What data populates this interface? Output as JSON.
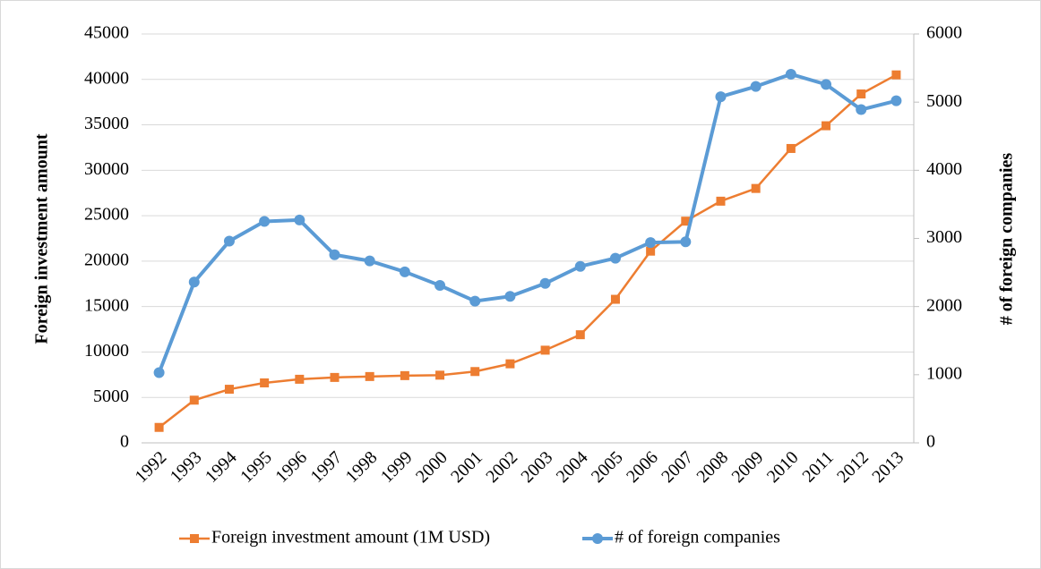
{
  "chart_data": {
    "type": "line",
    "categories": [
      "1992",
      "1993",
      "1994",
      "1995",
      "1996",
      "1997",
      "1998",
      "1999",
      "2000",
      "2001",
      "2002",
      "2003",
      "2004",
      "2005",
      "2006",
      "2007",
      "2008",
      "2009",
      "2010",
      "2011",
      "2012",
      "2013"
    ],
    "series": [
      {
        "name": "Foreign investment amount (1M USD)",
        "color": "#ed7d31",
        "marker": "square",
        "values": [
          1700,
          4700,
          5900,
          6600,
          7000,
          7200,
          7300,
          7400,
          7450,
          7850,
          8700,
          10200,
          11900,
          15800,
          21100,
          24400,
          26600,
          28000,
          32400,
          34900,
          38400,
          40500
        ]
      },
      {
        "name": "# of foreign companies",
        "color": "#5b9bd5",
        "marker": "circle",
        "axis": "y2",
        "values": [
          1030,
          2360,
          2960,
          3250,
          3270,
          2760,
          2670,
          2510,
          2310,
          2080,
          2150,
          2340,
          2590,
          2710,
          2940,
          2950,
          5080,
          5230,
          5410,
          5260,
          4890,
          5020
        ]
      }
    ],
    "ylabel": "Foreign investment  amount",
    "y2label": "# of foreign companies",
    "ylim": [
      0,
      45000
    ],
    "yticks": [
      0,
      5000,
      10000,
      15000,
      20000,
      25000,
      30000,
      35000,
      40000,
      45000
    ],
    "y2lim": [
      0,
      6000
    ],
    "y2ticks": [
      0,
      1000,
      2000,
      3000,
      4000,
      5000,
      6000
    ],
    "grid": true,
    "legend": "bottom"
  }
}
